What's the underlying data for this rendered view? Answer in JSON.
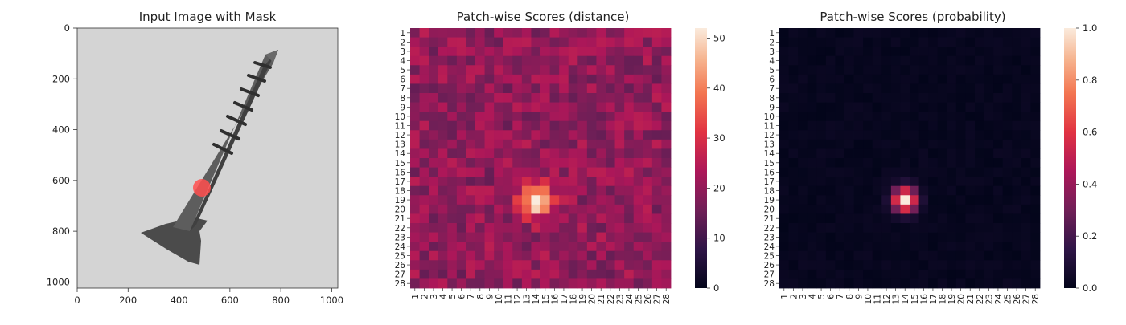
{
  "chart_data": [
    {
      "type": "image",
      "title": "Input Image with Mask",
      "xticks": [
        0,
        200,
        400,
        600,
        800,
        1000
      ],
      "yticks": [
        0,
        200,
        400,
        600,
        800,
        1000
      ],
      "xlim": [
        0,
        1024
      ],
      "ylim": [
        1024,
        0
      ],
      "mask_region": {
        "cx": 490,
        "cy": 630,
        "r": 35
      },
      "colors": {
        "background": "#d6d6d6",
        "screw": "#5a5a5a",
        "mask": "#ff5a5a"
      }
    },
    {
      "type": "heatmap",
      "title": "Patch-wise Scores (distance)",
      "rows": 28,
      "cols": 28,
      "labels": [
        "1",
        "2",
        "3",
        "4",
        "5",
        "6",
        "7",
        "8",
        "9",
        "10",
        "11",
        "12",
        "13",
        "14",
        "15",
        "16",
        "17",
        "18",
        "19",
        "20",
        "21",
        "22",
        "23",
        "24",
        "25",
        "26",
        "27",
        "28"
      ],
      "vmin": 0,
      "vmax": 52,
      "colorbar_ticks": [
        0,
        10,
        20,
        30,
        40,
        50
      ],
      "background_level": 20,
      "hotspot": {
        "row": 19,
        "col": 14,
        "peak": 52
      },
      "colormap": "rocket"
    },
    {
      "type": "heatmap",
      "title": "Patch-wise Scores (probability)",
      "rows": 28,
      "cols": 28,
      "labels": [
        "1",
        "2",
        "3",
        "4",
        "5",
        "6",
        "7",
        "8",
        "9",
        "10",
        "11",
        "12",
        "13",
        "14",
        "15",
        "16",
        "17",
        "18",
        "19",
        "20",
        "21",
        "22",
        "23",
        "24",
        "25",
        "26",
        "27",
        "28"
      ],
      "vmin": 0,
      "vmax": 1,
      "colorbar_ticks": [
        "0.0",
        "0.2",
        "0.4",
        "0.6",
        "0.8",
        "1.0"
      ],
      "background_level": 0.0,
      "hotspot": {
        "row": 19,
        "col": 14,
        "peak": 1.0
      },
      "colormap": "rocket"
    }
  ]
}
